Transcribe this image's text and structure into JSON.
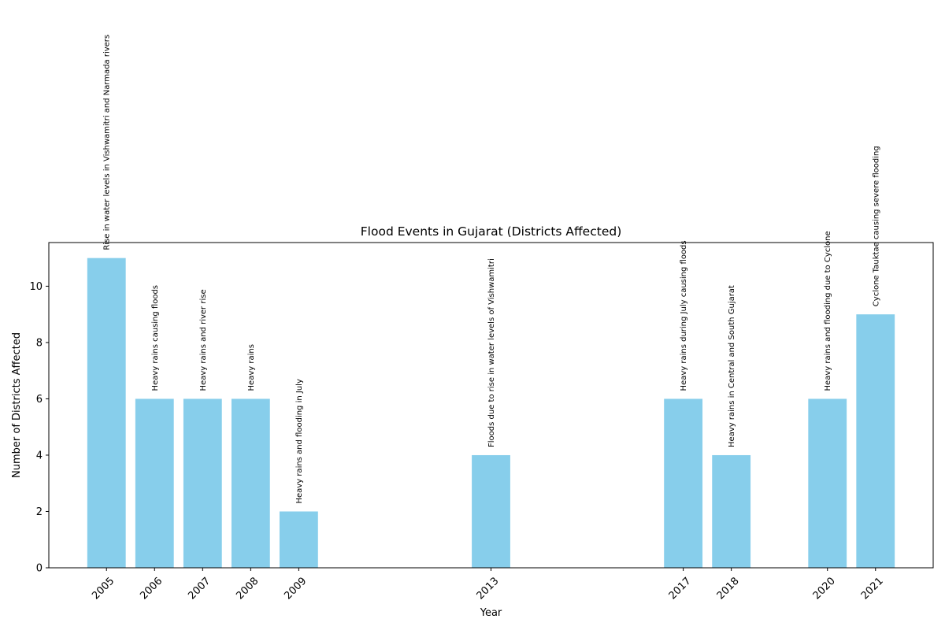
{
  "chart_data": {
    "type": "bar",
    "title": "Flood Events in Gujarat (Districts Affected)",
    "xlabel": "Year",
    "ylabel": "Number of Districts Affected",
    "ylim": [
      0,
      11.55
    ],
    "yticks": [
      0,
      2,
      4,
      6,
      8,
      10
    ],
    "xlim": [
      2003.8,
      2022.2
    ],
    "bar_color": "#87CEEB",
    "grid": false,
    "x": [
      2005,
      2006,
      2007,
      2008,
      2009,
      2013,
      2017,
      2018,
      2020,
      2021
    ],
    "categories": [
      "2005",
      "2006",
      "2007",
      "2008",
      "2009",
      "2013",
      "2017",
      "2018",
      "2020",
      "2021"
    ],
    "values": [
      11,
      6,
      6,
      6,
      2,
      4,
      6,
      4,
      6,
      9
    ],
    "annotations": [
      "Rise in water levels in Vishwamitri and Narmada rivers",
      "Heavy rains causing floods",
      "Heavy rains and river rise",
      "Heavy rains",
      "Heavy rains and flooding in July",
      "Floods due to rise in water levels of Vishwamitri",
      "Heavy rains during July causing floods",
      "Heavy rains in Central and South Gujarat",
      "Heavy rains and flooding due to Cyclone",
      "Cyclone Tauktae causing severe flooding"
    ]
  }
}
